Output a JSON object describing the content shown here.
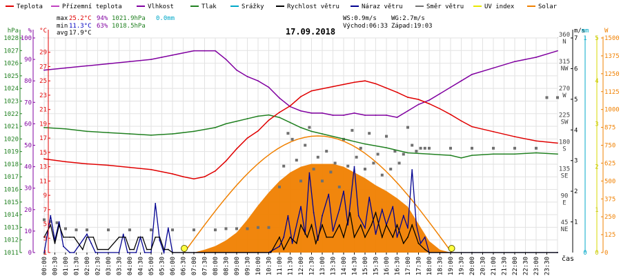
{
  "legend": [
    {
      "label": "Teplota",
      "color": "#e00000"
    },
    {
      "label": "Přízemní teplota",
      "color": "#c040c0"
    },
    {
      "label": "Vlhkost",
      "color": "#8000a0"
    },
    {
      "label": "Tlak",
      "color": "#208020"
    },
    {
      "label": "Srážky",
      "color": "#00a8c8"
    },
    {
      "label": "Rychlost větru",
      "color": "#000000"
    },
    {
      "label": "Náraz větru",
      "color": "#000090"
    },
    {
      "label": "Směr větru",
      "color": "#707070"
    },
    {
      "label": "UV index",
      "color": "#e8e800"
    },
    {
      "label": "Solar",
      "color": "#f08000"
    }
  ],
  "stats": {
    "max": {
      "label": "max",
      "temp": "25.2°C",
      "hum": "94%",
      "press": "1021.9hPa",
      "rain": "0.0mm"
    },
    "min": {
      "label": "min",
      "temp": "11.3°C",
      "hum": "63%",
      "press": "1018.5hPa"
    },
    "avg": {
      "label": "avg",
      "temp": "17.9°C"
    }
  },
  "wind_info": {
    "ws": "WS:0.9m/s",
    "wg": "WG:2.7m/s",
    "sunrise": "Východ:06:33",
    "sunset": "Západ:19:03"
  },
  "date": "17.09.2018",
  "x_axis_title": "čas",
  "axis_units": {
    "hpa": "hPa",
    "pct": "%",
    "degc": "°C",
    "ms": "m/s",
    "mm": "mm",
    "w": "W"
  },
  "chart_data": {
    "type": "line",
    "title": "17.09.2018",
    "x_ticks": [
      "00:00",
      "00:30",
      "01:00",
      "01:30",
      "02:00",
      "02:30",
      "03:00",
      "03:30",
      "04:00",
      "04:30",
      "05:00",
      "05:30",
      "06:00",
      "06:30",
      "07:00",
      "07:30",
      "08:00",
      "08:30",
      "09:00",
      "09:30",
      "10:00",
      "10:30",
      "11:00",
      "11:30",
      "12:00",
      "12:30",
      "13:00",
      "13:30",
      "14:00",
      "14:30",
      "15:00",
      "15:30",
      "16:00",
      "16:30",
      "17:00",
      "17:30",
      "18:00",
      "18:30",
      "19:00",
      "19:30",
      "20:00",
      "20:30",
      "21:00",
      "21:30",
      "22:00",
      "22:30",
      "23:00",
      "23:30"
    ],
    "axes": {
      "pressure": {
        "unit": "hPa",
        "min": 1011,
        "max": 1028,
        "ticks": [
          1011,
          1012,
          1013,
          1014,
          1015,
          1016,
          1017,
          1018,
          1019,
          1020,
          1021,
          1022,
          1023,
          1024,
          1025,
          1026,
          1027,
          1028
        ]
      },
      "humidity": {
        "unit": "%",
        "min": 0,
        "max": 100,
        "ticks": [
          0,
          10,
          20,
          30,
          40,
          50,
          60,
          70,
          80,
          90,
          100
        ]
      },
      "temperature": {
        "unit": "°C",
        "min": 1,
        "max": 31,
        "ticks": [
          1,
          3,
          5,
          7,
          9,
          11,
          13,
          15,
          17,
          19,
          21,
          23,
          25,
          27,
          29
        ]
      },
      "wind_direction": {
        "ticks": [
          {
            "deg": 45,
            "label": "NE"
          },
          {
            "deg": 90,
            "label": "E"
          },
          {
            "deg": 135,
            "label": "SE"
          },
          {
            "deg": 180,
            "label": "S"
          },
          {
            "deg": 225,
            "label": "SW"
          },
          {
            "deg": 270,
            "label": "W"
          },
          {
            "deg": 315,
            "label": "NW"
          },
          {
            "deg": 360,
            "label": "N"
          }
        ]
      },
      "wind_speed": {
        "unit": "m/s",
        "min": 0,
        "max": 7,
        "ticks": [
          1,
          2,
          3,
          4,
          5,
          6,
          7
        ]
      },
      "rain": {
        "unit": "mm",
        "min": 0,
        "max": 1,
        "ticks": [
          0,
          1
        ]
      },
      "uv": {
        "min": 0,
        "max": 5,
        "ticks": [
          0,
          1,
          2,
          3,
          4,
          5
        ]
      },
      "solar": {
        "unit": "W",
        "min": 0,
        "max": 1500,
        "ticks": [
          0,
          125,
          250,
          375,
          500,
          625,
          750,
          875,
          1000,
          1125,
          1250,
          1375,
          1500
        ]
      }
    },
    "series": [
      {
        "name": "Teplota",
        "axis": "temperature",
        "color": "#e00000",
        "x": [
          0,
          1,
          2,
          3,
          4,
          5,
          6,
          6.5,
          7,
          7.5,
          8,
          8.5,
          9,
          9.5,
          10,
          10.5,
          11,
          11.5,
          12,
          12.5,
          13,
          13.5,
          14,
          14.5,
          15,
          15.5,
          16,
          16.5,
          17,
          17.5,
          18,
          18.5,
          19,
          19.5,
          20,
          21,
          22,
          23,
          24
        ],
        "y": [
          14.1,
          13.7,
          13.4,
          13.2,
          12.9,
          12.6,
          12.0,
          11.6,
          11.3,
          11.6,
          12.4,
          13.8,
          15.5,
          17.0,
          18.0,
          19.5,
          20.6,
          21.5,
          22.8,
          23.6,
          23.9,
          24.2,
          24.5,
          24.8,
          25.0,
          24.6,
          24.0,
          23.4,
          22.7,
          22.4,
          21.8,
          21.1,
          20.3,
          19.4,
          18.6,
          17.9,
          17.2,
          16.6,
          16.3
        ]
      },
      {
        "name": "Vlhkost",
        "axis": "humidity",
        "color": "#8000a0",
        "x": [
          0,
          1,
          2,
          3,
          4,
          5,
          5.5,
          6,
          6.5,
          7,
          7.5,
          8,
          8.5,
          9,
          9.5,
          10,
          10.5,
          11,
          11.5,
          12,
          12.5,
          13,
          13.5,
          14,
          14.5,
          15,
          15.5,
          16,
          16.5,
          17,
          17.5,
          18,
          18.5,
          19,
          19.5,
          20,
          21,
          22,
          23,
          24
        ],
        "y": [
          85,
          86,
          87,
          88,
          89,
          90,
          91,
          92,
          93,
          94,
          94,
          94,
          90,
          85,
          82,
          80,
          77,
          72,
          68,
          66,
          65,
          65,
          64,
          64,
          65,
          64,
          64,
          64,
          63,
          66,
          69,
          71,
          74,
          77,
          80,
          83,
          86,
          89,
          91,
          94
        ]
      },
      {
        "name": "Tlak",
        "axis": "pressure",
        "color": "#208020",
        "x": [
          0,
          1,
          2,
          3,
          4,
          5,
          6,
          7,
          8,
          8.5,
          9,
          9.5,
          10,
          10.5,
          11,
          11.5,
          12,
          12.5,
          13,
          14,
          15,
          16,
          17,
          18,
          19,
          19.5,
          20,
          21,
          22,
          23,
          24
        ],
        "y": [
          1020.9,
          1020.8,
          1020.6,
          1020.5,
          1020.4,
          1020.3,
          1020.4,
          1020.6,
          1020.9,
          1021.2,
          1021.4,
          1021.6,
          1021.8,
          1021.9,
          1021.7,
          1021.3,
          1020.9,
          1020.6,
          1020.4,
          1020.0,
          1019.6,
          1019.3,
          1018.9,
          1018.8,
          1018.7,
          1018.5,
          1018.7,
          1018.8,
          1018.8,
          1018.9,
          1018.8
        ]
      },
      {
        "name": "Rychlost větru",
        "axis": "wind_speed",
        "color": "#000000",
        "x": [
          0,
          0.3,
          0.5,
          0.7,
          0.9,
          1.2,
          1.4,
          1.8,
          2,
          2.3,
          2.5,
          3,
          3.5,
          3.8,
          4,
          4.2,
          4.4,
          4.6,
          4.8,
          5,
          5.2,
          5.4,
          5.6,
          5.8,
          6,
          7,
          8,
          9,
          10,
          10.6,
          11,
          11.2,
          11.5,
          11.8,
          12,
          12.3,
          12.5,
          12.7,
          13,
          13.2,
          13.5,
          13.8,
          14,
          14.3,
          14.5,
          14.8,
          15,
          15.3,
          15.5,
          15.8,
          16,
          16.3,
          16.5,
          16.8,
          17,
          17.2,
          17.5,
          17.8,
          18,
          19,
          20,
          24
        ],
        "y": [
          0.5,
          0.9,
          0.3,
          0.9,
          0.5,
          0.5,
          0.5,
          0.1,
          0.5,
          0.5,
          0.1,
          0.1,
          0.5,
          0.5,
          0.1,
          0.1,
          0.5,
          0.5,
          0.1,
          0.1,
          0.5,
          0.5,
          0.1,
          0.1,
          0,
          0,
          0,
          0,
          0,
          0,
          0.5,
          0.1,
          0.5,
          0.3,
          0.9,
          0.5,
          0.9,
          0.3,
          0.9,
          0.5,
          0.5,
          0.9,
          0.5,
          1.3,
          0.5,
          0.9,
          0.5,
          0.9,
          1.3,
          0.5,
          0.9,
          0.5,
          0.9,
          0.3,
          0.5,
          0.9,
          0.3,
          0.1,
          0,
          0,
          0,
          0
        ]
      },
      {
        "name": "Náraz větru",
        "axis": "wind_speed",
        "color": "#000090",
        "x": [
          0,
          0.3,
          0.5,
          0.7,
          0.9,
          1.2,
          1.4,
          2,
          2.2,
          2.4,
          3.5,
          3.7,
          3.9,
          4.3,
          4.5,
          4.7,
          5,
          5.2,
          5.4,
          5.6,
          5.8,
          6,
          10.5,
          11,
          11.2,
          11.4,
          11.6,
          12,
          12.2,
          12.4,
          12.6,
          12.8,
          13,
          13.3,
          13.5,
          13.8,
          14,
          14.2,
          14.5,
          14.7,
          15,
          15.2,
          15.5,
          15.8,
          16,
          16.3,
          16.5,
          16.8,
          17,
          17.2,
          17.4,
          17.6,
          17.8,
          18,
          24
        ],
        "y": [
          0,
          1.2,
          0.4,
          1.0,
          0.2,
          0,
          0,
          0.6,
          0.3,
          0,
          0,
          0.6,
          0,
          0,
          0.5,
          0,
          0,
          1.6,
          0.4,
          0,
          0.8,
          0,
          0,
          0.2,
          0.5,
          1.2,
          0.3,
          1.5,
          0.6,
          2.6,
          1.3,
          0.4,
          1.2,
          1.9,
          0.7,
          1.4,
          2.0,
          0.9,
          2.8,
          1.2,
          0.8,
          1.8,
          0.6,
          1.4,
          0.9,
          1.5,
          0.5,
          1.2,
          0.8,
          2.7,
          0.9,
          0.3,
          0.5,
          0,
          0
        ]
      },
      {
        "name": "Solar",
        "axis": "solar",
        "color": "#f08000",
        "x": [
          7,
          7.5,
          8,
          8.5,
          9,
          9.5,
          10,
          10.5,
          11,
          11.5,
          12,
          12.5,
          13,
          13.5,
          14,
          14.5,
          15,
          15.5,
          16,
          16.5,
          17,
          17.5,
          18,
          18.5,
          19
        ],
        "y": [
          0,
          20,
          45,
          85,
          140,
          230,
          330,
          420,
          500,
          560,
          600,
          620,
          620,
          620,
          600,
          560,
          520,
          470,
          430,
          380,
          320,
          200,
          80,
          20,
          0
        ]
      },
      {
        "name": "UV index",
        "axis": "uv",
        "color": "#e8e800",
        "x": [
          0,
          24
        ],
        "y": [
          0,
          0
        ]
      }
    ],
    "wind_direction": {
      "series_name": "Směr větru",
      "axis": "wind_direction",
      "color": "#707070",
      "x": [
        0,
        0.3,
        0.6,
        1,
        1.5,
        2,
        3,
        4,
        5,
        6,
        7,
        8,
        8.5,
        9,
        9.5,
        10,
        10.5,
        11,
        11.2,
        11.4,
        11.6,
        11.8,
        12,
        12.2,
        12.4,
        12.6,
        12.8,
        13,
        13.2,
        13.4,
        13.6,
        13.8,
        14,
        14.2,
        14.4,
        14.6,
        14.8,
        15,
        15.2,
        15.4,
        15.6,
        15.8,
        16,
        16.2,
        16.4,
        16.6,
        16.8,
        17,
        17.2,
        17.4,
        17.6,
        17.8,
        18,
        19,
        20,
        21,
        22,
        23,
        23.5,
        24
      ],
      "y": [
        55,
        52,
        50,
        40,
        38,
        38,
        38,
        38,
        38,
        38,
        38,
        38,
        40,
        40,
        40,
        42,
        42,
        110,
        145,
        200,
        190,
        155,
        120,
        180,
        210,
        140,
        160,
        120,
        170,
        135,
        150,
        110,
        190,
        145,
        205,
        160,
        175,
        140,
        200,
        150,
        165,
        130,
        195,
        140,
        170,
        150,
        165,
        210,
        180,
        170,
        175,
        175,
        175,
        175,
        175,
        175,
        175,
        175,
        260,
        260
      ]
    },
    "ground_temp_series": {
      "name": "Přízemní teplota",
      "color": "#c040c0"
    },
    "rain_series": {
      "name": "Srážky",
      "color": "#00a8c8",
      "total": "0.0mm"
    },
    "sun_markers": {
      "sunrise": "06:33",
      "sunset": "19:03",
      "sunrise_h": 6.55,
      "sunset_h": 19.05
    }
  }
}
